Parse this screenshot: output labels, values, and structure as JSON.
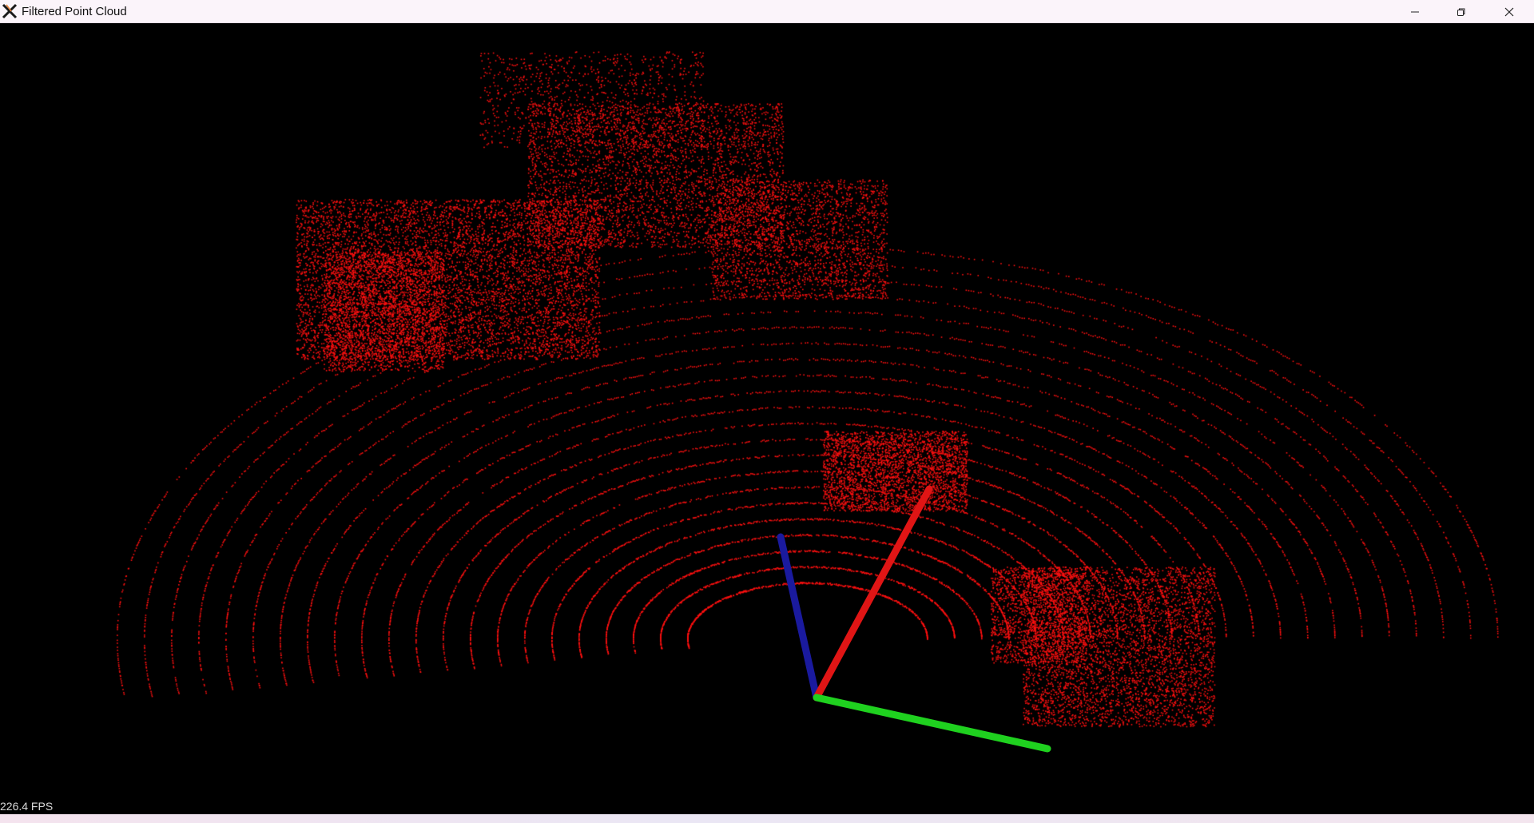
{
  "window": {
    "title": "Filtered Point Cloud",
    "icon": "x-window-icon",
    "controls": [
      "minimize-icon",
      "restore-icon",
      "close-icon"
    ]
  },
  "viewport": {
    "background": "#000000",
    "point_color": "#ff1010",
    "axes": {
      "x_color": "#e01515",
      "y_color": "#1fd11f",
      "z_color": "#1a1a9e"
    }
  },
  "status": {
    "fps": "226.4 FPS"
  }
}
